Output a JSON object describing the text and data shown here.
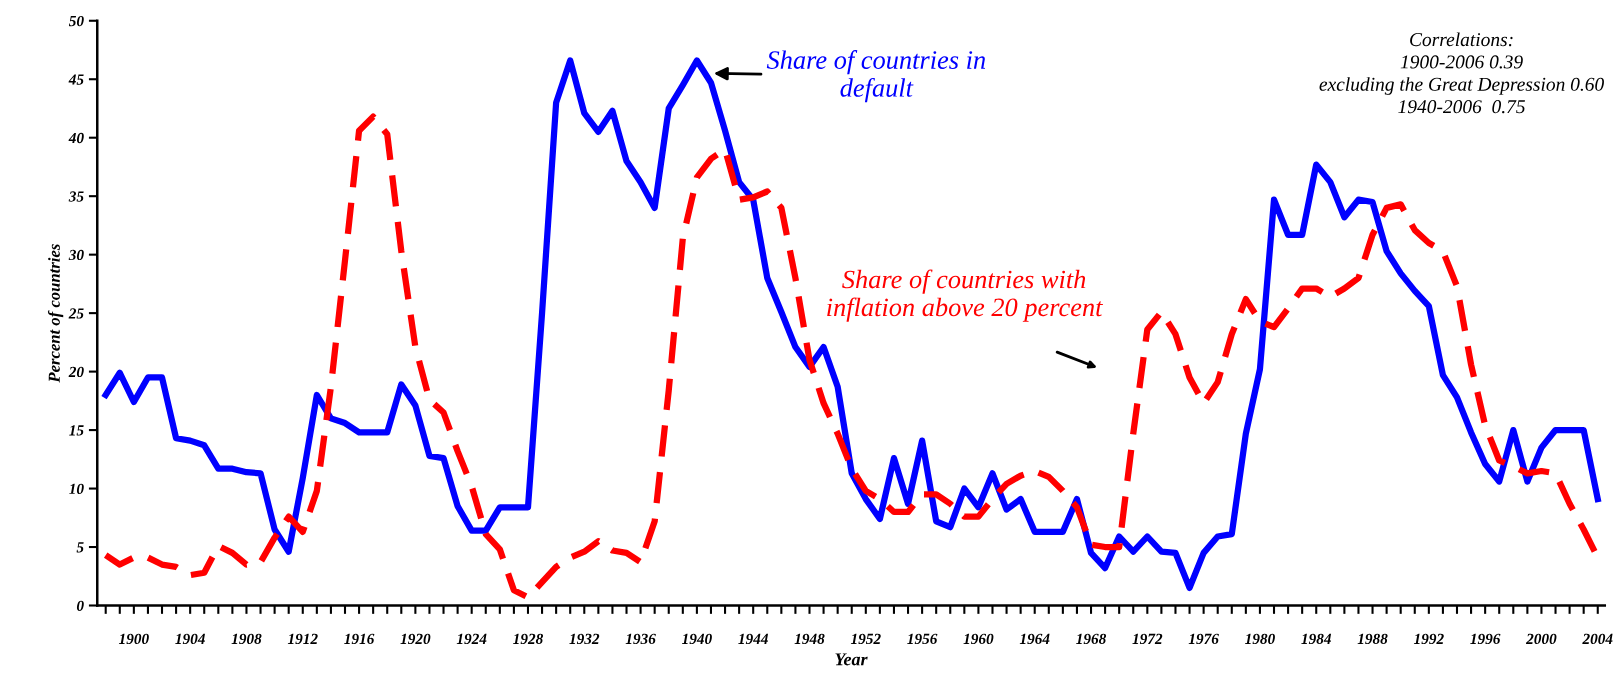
{
  "chart_data": {
    "type": "line",
    "xlabel": "Year",
    "ylabel": "Percent of countries",
    "x": [
      1898,
      1899,
      1900,
      1901,
      1902,
      1903,
      1904,
      1905,
      1906,
      1907,
      1908,
      1909,
      1910,
      1911,
      1912,
      1913,
      1914,
      1915,
      1916,
      1917,
      1918,
      1919,
      1920,
      1921,
      1922,
      1923,
      1924,
      1925,
      1926,
      1927,
      1928,
      1929,
      1930,
      1931,
      1932,
      1933,
      1934,
      1935,
      1936,
      1937,
      1938,
      1939,
      1940,
      1941,
      1942,
      1943,
      1944,
      1945,
      1946,
      1947,
      1948,
      1949,
      1950,
      1951,
      1952,
      1953,
      1954,
      1955,
      1956,
      1957,
      1958,
      1959,
      1960,
      1961,
      1962,
      1963,
      1964,
      1965,
      1966,
      1967,
      1968,
      1969,
      1970,
      1971,
      1972,
      1973,
      1974,
      1975,
      1976,
      1977,
      1978,
      1979,
      1980,
      1981,
      1982,
      1983,
      1984,
      1985,
      1986,
      1987,
      1988,
      1989,
      1990,
      1991,
      1992,
      1993,
      1994,
      1995,
      1996,
      1997,
      1998,
      1999,
      2000,
      2001,
      2002,
      2003,
      2004
    ],
    "series": [
      {
        "color": "#0000ff",
        "line_style": "solid",
        "values": [
          18.0,
          19.9,
          17.4,
          19.5,
          19.5,
          14.3,
          14.1,
          13.7,
          11.7,
          11.7,
          11.4,
          11.3,
          6.5,
          4.6,
          10.9,
          18.0,
          16.0,
          15.6,
          14.8,
          14.8,
          14.8,
          18.9,
          17.1,
          12.8,
          12.6,
          8.5,
          6.4,
          6.4,
          8.4,
          8.4,
          8.4,
          25.0,
          43.0,
          46.6,
          42.1,
          40.5,
          42.3,
          38.0,
          36.2,
          34.0,
          42.5,
          44.5,
          46.6,
          44.7,
          40.6,
          36.2,
          34.7,
          28.0,
          25.1,
          22.1,
          20.4,
          22.1,
          18.7,
          11.3,
          9.1,
          7.4,
          12.6,
          8.7,
          14.1,
          7.2,
          6.7,
          10.0,
          8.4,
          11.3,
          8.2,
          9.1,
          6.3,
          6.3,
          6.3,
          9.1,
          4.5,
          3.2,
          5.9,
          4.6,
          5.9,
          4.6,
          4.5,
          1.5,
          4.5,
          5.9,
          6.1,
          14.7,
          20.2,
          34.7,
          31.7,
          31.7,
          37.7,
          36.2,
          33.2,
          34.7,
          34.5,
          30.3,
          28.4,
          26.9,
          25.6,
          19.7,
          17.8,
          14.8,
          12.1,
          10.6,
          15.0,
          10.6,
          13.5,
          15.0,
          15.0,
          15.0,
          9.1
        ]
      },
      {
        "color": "#ff0000",
        "line_style": "dashed",
        "values": [
          4.3,
          3.5,
          4.1,
          4.1,
          3.5,
          3.3,
          2.6,
          2.8,
          5.1,
          4.5,
          3.5,
          3.7,
          5.8,
          7.6,
          6.3,
          9.8,
          18.7,
          29.5,
          40.6,
          41.8,
          40.3,
          30.3,
          22.1,
          17.6,
          16.5,
          13.2,
          10.2,
          6.1,
          4.8,
          1.3,
          0.7,
          2.0,
          3.3,
          4.1,
          4.6,
          5.5,
          4.7,
          4.5,
          3.7,
          7.2,
          18.4,
          31.4,
          36.6,
          38.2,
          39.0,
          34.7,
          34.9,
          35.4,
          34.0,
          28.0,
          21.0,
          17.3,
          14.7,
          11.7,
          9.8,
          9.1,
          8.0,
          8.0,
          9.5,
          9.5,
          8.7,
          7.6,
          7.6,
          9.1,
          10.4,
          11.1,
          11.5,
          11.0,
          9.8,
          8.4,
          5.2,
          5.0,
          5.0,
          14.7,
          23.6,
          25.1,
          23.2,
          19.5,
          17.3,
          19.1,
          23.2,
          26.2,
          24.3,
          23.8,
          25.4,
          27.1,
          27.1,
          26.4,
          27.1,
          28.0,
          31.7,
          34.0,
          34.3,
          32.1,
          31.0,
          30.3,
          27.3,
          20.6,
          15.4,
          12.4,
          11.9,
          11.3,
          11.5,
          11.3,
          8.7,
          6.5,
          4.1
        ]
      }
    ],
    "annotations": [
      {
        "text": "Share of countries in\ndefault",
        "x": 1941,
        "y": 45.5
      },
      "Share of countries with\ninflation above 20 percent",
      "Correlations:\n1900-2006 0.39\nexcluding the Great Depression 0.60\n1940-2006  0.75"
    ],
    "xlim": [
      1897.4,
      2004.5
    ],
    "xticks": [
      {
        "value": 1898,
        "label": null
      },
      {
        "value": 1899,
        "label": null
      },
      1900,
      {
        "value": 1901,
        "label": null
      },
      {
        "value": 1902,
        "label": null
      },
      {
        "value": 1903,
        "label": null
      },
      1904,
      {
        "value": 1905,
        "label": null
      },
      {
        "value": 1906,
        "label": null
      },
      {
        "value": 1907,
        "label": null
      },
      1908,
      {
        "value": 1909,
        "label": null
      },
      {
        "value": 1910,
        "label": null
      },
      {
        "value": 1911,
        "label": null
      },
      1912,
      {
        "value": 1913,
        "label": null
      },
      {
        "value": 1914,
        "label": null
      },
      {
        "value": 1915,
        "label": null
      },
      1916,
      {
        "value": 1917,
        "label": null
      },
      {
        "value": 1918,
        "label": null
      },
      {
        "value": 1919,
        "label": null
      },
      1920,
      {
        "value": 1921,
        "label": null
      },
      {
        "value": 1922,
        "label": null
      },
      {
        "value": 1923,
        "label": null
      },
      1924,
      {
        "value": 1925,
        "label": null
      },
      {
        "value": 1926,
        "label": null
      },
      {
        "value": 1927,
        "label": null
      },
      1928,
      {
        "value": 1929,
        "label": null
      },
      {
        "value": 1930,
        "label": null
      },
      {
        "value": 1931,
        "label": null
      },
      1932,
      {
        "value": 1933,
        "label": null
      },
      {
        "value": 1934,
        "label": null
      },
      {
        "value": 1935,
        "label": null
      },
      1936,
      {
        "value": 1937,
        "label": null
      },
      {
        "value": 1938,
        "label": null
      },
      {
        "value": 1939,
        "label": null
      },
      1940,
      {
        "value": 1941,
        "label": null
      },
      {
        "value": 1942,
        "label": null
      },
      {
        "value": 1943,
        "label": null
      },
      1944,
      {
        "value": 1945,
        "label": null
      },
      {
        "value": 1946,
        "label": null
      },
      {
        "value": 1947,
        "label": null
      },
      1948,
      {
        "value": 1949,
        "label": null
      },
      {
        "value": 1950,
        "label": null
      },
      {
        "value": 1951,
        "label": null
      },
      1952,
      {
        "value": 1953,
        "label": null
      },
      {
        "value": 1954,
        "label": null
      },
      {
        "value": 1955,
        "label": null
      },
      1956,
      {
        "value": 1957,
        "label": null
      },
      {
        "value": 1958,
        "label": null
      },
      {
        "value": 1959,
        "label": null
      },
      1960,
      {
        "value": 1961,
        "label": null
      },
      {
        "value": 1962,
        "label": null
      },
      {
        "value": 1963,
        "label": null
      },
      1964,
      {
        "value": 1965,
        "label": null
      },
      {
        "value": 1966,
        "label": null
      },
      {
        "value": 1967,
        "label": null
      },
      1968,
      {
        "value": 1969,
        "label": null
      },
      {
        "value": 1970,
        "label": null
      },
      {
        "value": 1971,
        "label": null
      },
      1972,
      {
        "value": 1973,
        "label": null
      },
      {
        "value": 1974,
        "label": null
      },
      {
        "value": 1975,
        "label": null
      },
      1976,
      {
        "value": 1977,
        "label": null
      },
      {
        "value": 1978,
        "label": null
      },
      {
        "value": 1979,
        "label": null
      },
      1980,
      {
        "value": 1981,
        "label": null
      },
      {
        "value": 1982,
        "label": null
      },
      {
        "value": 1983,
        "label": null
      },
      1984,
      {
        "value": 1985,
        "label": null
      },
      {
        "value": 1986,
        "label": null
      },
      {
        "value": 1987,
        "label": null
      },
      1988,
      {
        "value": 1989,
        "label": null
      },
      {
        "value": 1990,
        "label": null
      },
      {
        "value": 1991,
        "label": null
      },
      1992,
      {
        "value": 1993,
        "label": null
      },
      {
        "value": 1994,
        "label": null
      },
      {
        "value": 1995,
        "label": null
      },
      1996,
      {
        "value": 1997,
        "label": null
      },
      {
        "value": 1998,
        "label": null
      },
      {
        "value": 1999,
        "label": null
      },
      2000,
      {
        "value": 2001,
        "label": null
      },
      {
        "value": 2002,
        "label": null
      },
      {
        "value": 2003,
        "label": null
      },
      2004
    ],
    "ylim": [
      0,
      50
    ],
    "yticks": [
      0,
      5,
      10,
      15,
      20,
      25,
      30,
      35,
      40,
      45,
      50
    ],
    "grid": false,
    "marker": "none"
  }
}
